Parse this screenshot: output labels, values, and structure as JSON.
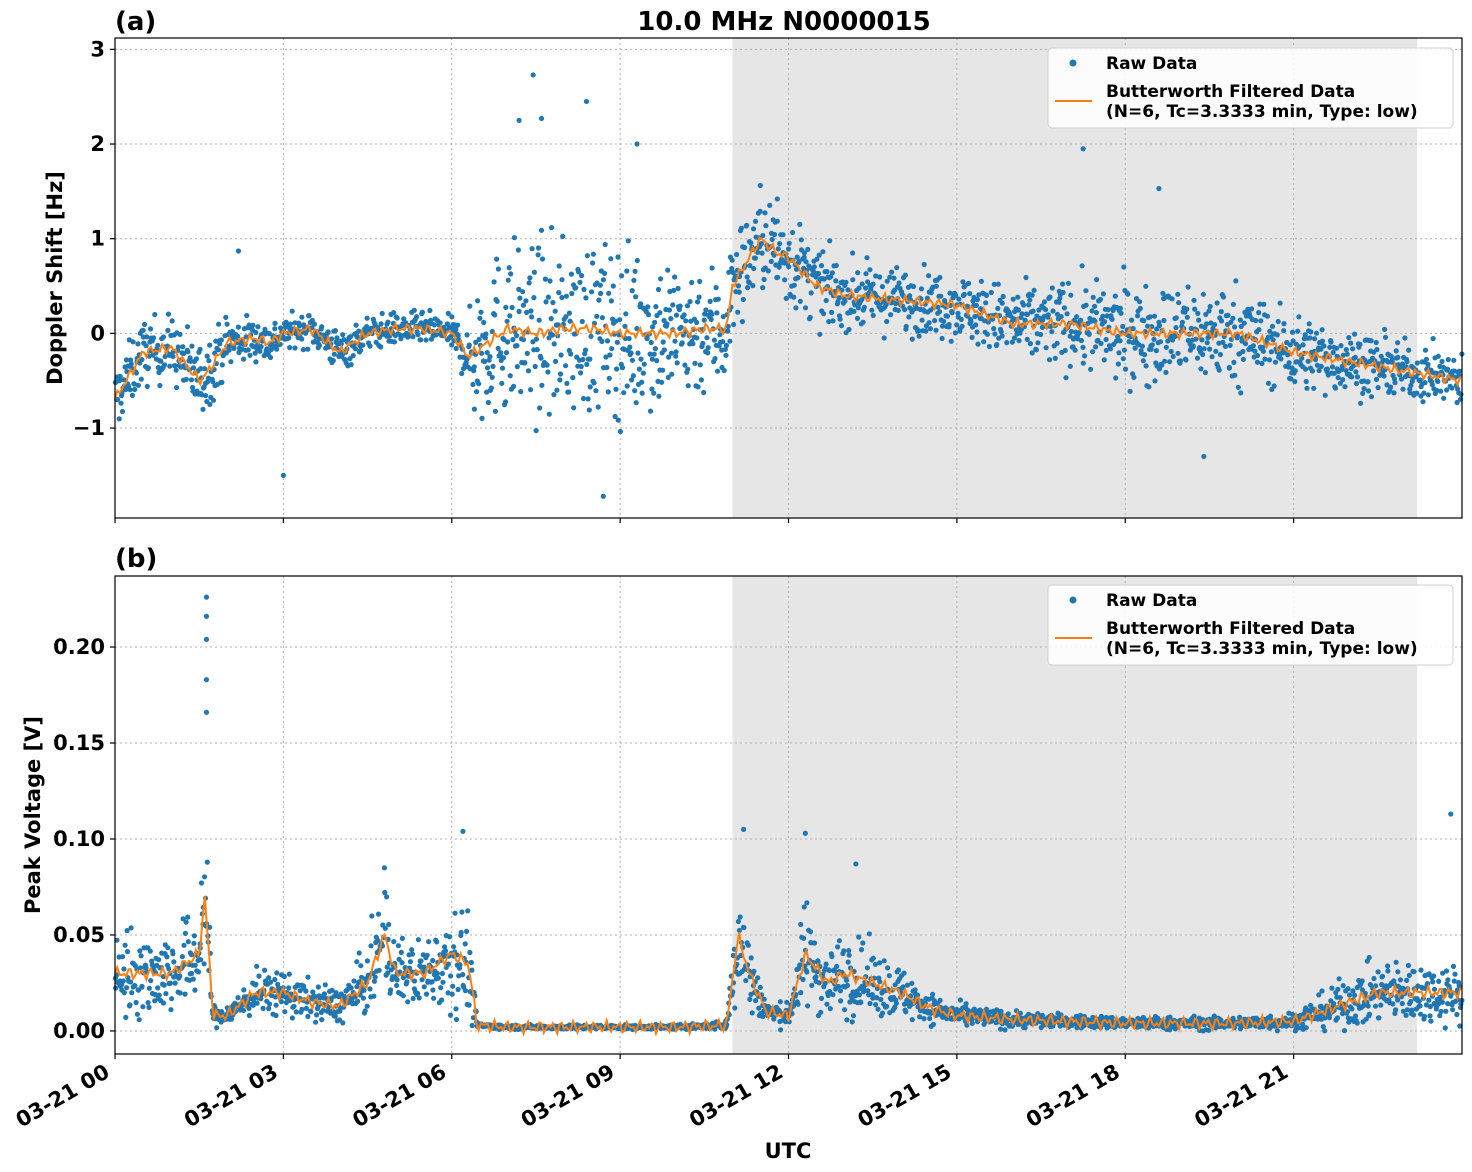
{
  "figure": {
    "title": "10.0 MHz N0000015",
    "xlabel": "UTC",
    "xticks": [
      "03-21 00",
      "03-21 03",
      "03-21 06",
      "03-21 09",
      "03-21 12",
      "03-21 15",
      "03-21 18",
      "03-21 21"
    ]
  },
  "colors": {
    "raw": "#1f77b4",
    "filtered": "#ff7f0e",
    "shade": "#e6e6e6",
    "grid": "#b0b0b0"
  },
  "chart_data": [
    {
      "type": "scatter",
      "panel_label": "(a)",
      "ylabel": "Doppler Shift [Hz]",
      "xlim": [
        0,
        24
      ],
      "ylim": [
        -1.95,
        3.12
      ],
      "yticks": [
        -1,
        0,
        1,
        2,
        3
      ],
      "ytick_labels": [
        "−1",
        "0",
        "1",
        "2",
        "3"
      ],
      "shaded_region_hours": [
        11.0,
        23.2
      ],
      "legend": [
        "Raw Data",
        "Butterworth Filtered Data",
        "(N=6, Tc=3.3333 min, Type: low)"
      ],
      "legend_position": "top-right",
      "grid": true,
      "series": [
        {
          "name": "Raw Data",
          "x": [
            0,
            0.5,
            1.0,
            1.5,
            1.6,
            2.0,
            2.5,
            2.75,
            3.0,
            3.5,
            4.0,
            4.5,
            5.0,
            5.5,
            6.0,
            6.3,
            6.4,
            7.0,
            7.5,
            8.0,
            8.5,
            9.0,
            9.5,
            10.0,
            10.5,
            10.9,
            11.0,
            11.5,
            11.8,
            12.0,
            12.5,
            13.0,
            14.0,
            15.0,
            16.0,
            17.0,
            18.0,
            19.0,
            20.0,
            21.0,
            22.0,
            23.0,
            24.0
          ],
          "center": [
            -0.7,
            -0.2,
            -0.15,
            -0.5,
            -0.45,
            -0.1,
            -0.05,
            -0.1,
            0.0,
            0.05,
            -0.2,
            0.0,
            0.05,
            0.05,
            0.0,
            -0.25,
            -0.2,
            0.05,
            0.0,
            0.05,
            0.05,
            0.0,
            0.0,
            0.0,
            0.05,
            0.05,
            0.5,
            1.0,
            0.85,
            0.8,
            0.5,
            0.4,
            0.35,
            0.3,
            0.1,
            0.1,
            0.0,
            0.0,
            0.0,
            -0.2,
            -0.3,
            -0.4,
            -0.5
          ],
          "spread": [
            0.3,
            0.3,
            0.3,
            0.35,
            0.35,
            0.25,
            0.2,
            0.2,
            0.15,
            0.15,
            0.2,
            0.15,
            0.15,
            0.15,
            0.15,
            0.3,
            0.7,
            0.8,
            0.8,
            0.8,
            0.8,
            0.8,
            0.75,
            0.7,
            0.6,
            0.6,
            0.5,
            0.45,
            0.45,
            0.45,
            0.35,
            0.3,
            0.3,
            0.3,
            0.35,
            0.4,
            0.45,
            0.45,
            0.45,
            0.35,
            0.3,
            0.25,
            0.25
          ]
        },
        {
          "name": "Butterworth Filtered Data",
          "x": [
            0,
            0.5,
            1.0,
            1.5,
            1.6,
            2.0,
            2.5,
            2.75,
            3.0,
            3.5,
            4.0,
            4.5,
            5.0,
            5.5,
            6.0,
            6.3,
            6.4,
            7.0,
            7.5,
            8.0,
            8.5,
            9.0,
            9.5,
            10.0,
            10.5,
            10.9,
            11.0,
            11.5,
            11.8,
            12.0,
            12.5,
            13.0,
            14.0,
            15.0,
            16.0,
            17.0,
            18.0,
            19.0,
            20.0,
            21.0,
            22.0,
            23.0,
            24.0
          ],
          "y": [
            -0.7,
            -0.2,
            -0.15,
            -0.5,
            -0.45,
            -0.1,
            -0.05,
            -0.1,
            0.0,
            0.05,
            -0.2,
            0.0,
            0.05,
            0.05,
            0.0,
            -0.25,
            -0.2,
            0.05,
            0.0,
            0.05,
            0.05,
            0.0,
            0.0,
            0.0,
            0.05,
            0.05,
            0.5,
            1.0,
            0.85,
            0.8,
            0.5,
            0.4,
            0.35,
            0.3,
            0.1,
            0.1,
            0.0,
            0.0,
            0.0,
            -0.2,
            -0.3,
            -0.4,
            -0.5
          ]
        }
      ],
      "outliers": [
        [
          7.45,
          2.73
        ],
        [
          8.4,
          2.45
        ],
        [
          7.2,
          2.25
        ],
        [
          9.3,
          2.0
        ],
        [
          17.25,
          1.95
        ],
        [
          11.8,
          1.42
        ],
        [
          18.6,
          1.53
        ],
        [
          7.6,
          2.27
        ],
        [
          3.0,
          -1.5
        ],
        [
          8.7,
          -1.72
        ],
        [
          2.2,
          0.87
        ],
        [
          19.4,
          -1.3
        ]
      ]
    },
    {
      "type": "scatter",
      "panel_label": "(b)",
      "ylabel": "Peak Voltage [V]",
      "xlim": [
        0,
        24
      ],
      "ylim": [
        -0.012,
        0.237
      ],
      "yticks": [
        0.0,
        0.05,
        0.1,
        0.15,
        0.2
      ],
      "ytick_labels": [
        "0.00",
        "0.05",
        "0.10",
        "0.15",
        "0.20"
      ],
      "shaded_region_hours": [
        11.0,
        23.2
      ],
      "legend": [
        "Raw Data",
        "Butterworth Filtered Data",
        "(N=6, Tc=3.3333 min, Type: low)"
      ],
      "legend_position": "top-right",
      "grid": true,
      "series": [
        {
          "name": "Raw Data",
          "x": [
            0,
            0.5,
            1.0,
            1.5,
            1.6,
            1.75,
            2.0,
            2.5,
            3.0,
            3.5,
            4.0,
            4.5,
            4.8,
            5.0,
            5.5,
            6.0,
            6.3,
            6.45,
            7.0,
            8.0,
            9.0,
            10.0,
            10.9,
            11.1,
            11.3,
            11.6,
            12.0,
            12.3,
            12.7,
            13.0,
            13.5,
            14.0,
            14.5,
            15.0,
            16.0,
            17.0,
            18.0,
            19.0,
            20.0,
            21.0,
            21.5,
            22.0,
            22.5,
            23.0,
            23.5,
            24.0
          ],
          "center": [
            0.03,
            0.03,
            0.03,
            0.04,
            0.07,
            0.008,
            0.008,
            0.02,
            0.02,
            0.015,
            0.013,
            0.025,
            0.05,
            0.03,
            0.03,
            0.04,
            0.035,
            0.003,
            0.002,
            0.002,
            0.002,
            0.002,
            0.003,
            0.05,
            0.03,
            0.01,
            0.008,
            0.04,
            0.025,
            0.03,
            0.025,
            0.02,
            0.012,
            0.008,
            0.006,
            0.005,
            0.004,
            0.004,
            0.004,
            0.005,
            0.01,
            0.015,
            0.02,
            0.02,
            0.02,
            0.02
          ],
          "spread": [
            0.02,
            0.02,
            0.018,
            0.022,
            0.04,
            0.005,
            0.005,
            0.01,
            0.01,
            0.009,
            0.008,
            0.015,
            0.025,
            0.015,
            0.015,
            0.025,
            0.025,
            0.001,
            0.001,
            0.001,
            0.001,
            0.001,
            0.002,
            0.03,
            0.018,
            0.006,
            0.005,
            0.025,
            0.015,
            0.02,
            0.015,
            0.012,
            0.007,
            0.005,
            0.004,
            0.003,
            0.003,
            0.003,
            0.003,
            0.004,
            0.008,
            0.012,
            0.013,
            0.015,
            0.013,
            0.015
          ]
        },
        {
          "name": "Butterworth Filtered Data",
          "x": [
            0,
            0.5,
            1.0,
            1.5,
            1.6,
            1.75,
            2.0,
            2.5,
            3.0,
            3.5,
            4.0,
            4.5,
            4.8,
            5.0,
            5.5,
            6.0,
            6.3,
            6.45,
            7.0,
            8.0,
            9.0,
            10.0,
            10.9,
            11.1,
            11.3,
            11.6,
            12.0,
            12.3,
            12.7,
            13.0,
            13.5,
            14.0,
            14.5,
            15.0,
            16.0,
            17.0,
            18.0,
            19.0,
            20.0,
            21.0,
            21.5,
            22.0,
            22.5,
            23.0,
            23.5,
            24.0
          ],
          "y": [
            0.03,
            0.03,
            0.03,
            0.04,
            0.07,
            0.008,
            0.008,
            0.02,
            0.02,
            0.015,
            0.013,
            0.025,
            0.05,
            0.03,
            0.03,
            0.04,
            0.035,
            0.003,
            0.002,
            0.002,
            0.002,
            0.002,
            0.003,
            0.05,
            0.03,
            0.01,
            0.008,
            0.04,
            0.025,
            0.03,
            0.025,
            0.02,
            0.012,
            0.008,
            0.006,
            0.005,
            0.004,
            0.004,
            0.004,
            0.005,
            0.01,
            0.015,
            0.02,
            0.02,
            0.02,
            0.02
          ]
        }
      ],
      "outliers": [
        [
          1.63,
          0.226
        ],
        [
          1.63,
          0.216
        ],
        [
          1.63,
          0.204
        ],
        [
          1.63,
          0.183
        ],
        [
          1.63,
          0.166
        ],
        [
          6.2,
          0.104
        ],
        [
          11.2,
          0.105
        ],
        [
          12.3,
          0.103
        ],
        [
          4.8,
          0.085
        ],
        [
          13.2,
          0.087
        ],
        [
          23.8,
          0.113
        ]
      ]
    }
  ]
}
